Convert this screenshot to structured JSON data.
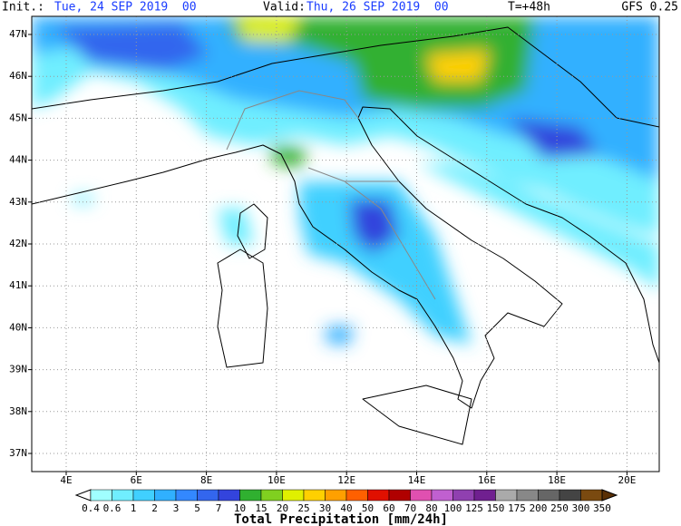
{
  "header": {
    "init_label": "Init.:",
    "init": "Tue, 24 SEP 2019  00",
    "valid_label": "Valid:",
    "valid": "Thu, 26 SEP 2019  00",
    "lead": "T=+48h",
    "model": "GFS 0.25"
  },
  "map": {
    "lat_labels": [
      "47N",
      "46N",
      "45N",
      "44N",
      "43N",
      "42N",
      "41N",
      "40N",
      "39N",
      "38N",
      "37N"
    ],
    "lon_labels": [
      "4E",
      "6E",
      "8E",
      "10E",
      "12E",
      "14E",
      "16E",
      "18E",
      "20E"
    ]
  },
  "legend": {
    "title": "Total Precipitation [mm/24h]",
    "labels": [
      "0.4",
      "0.6",
      "1",
      "2",
      "3",
      "5",
      "7",
      "10",
      "15",
      "20",
      "25",
      "30",
      "40",
      "50",
      "60",
      "70",
      "80",
      "100",
      "125",
      "150",
      "175",
      "200",
      "250",
      "300",
      "350"
    ],
    "colors": [
      "#ffffff",
      "#a0ffff",
      "#70eeff",
      "#40d0ff",
      "#30b0ff",
      "#3388ff",
      "#3366ee",
      "#3344dd",
      "#30b030",
      "#80d020",
      "#e0f000",
      "#ffd000",
      "#ffa000",
      "#ff6000",
      "#e01000",
      "#b00000",
      "#e050b0",
      "#c060d0",
      "#9040b0",
      "#702090",
      "#aaaaaa",
      "#888888",
      "#666666",
      "#444444",
      "#7a4a10",
      "#5a3005"
    ]
  }
}
